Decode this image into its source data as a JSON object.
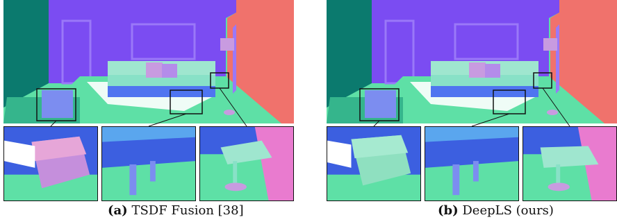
{
  "figure": {
    "panels": [
      {
        "id": "a",
        "caption_label": "(a)",
        "caption_text": "TSDF Fusion [38]"
      },
      {
        "id": "b",
        "caption_label": "(b)",
        "caption_text": "DeepLS (ours)"
      }
    ],
    "colors": {
      "wall_purple": "#7b4cf2",
      "wall_teal": "#0b7a6e",
      "wall_salmon": "#f0726c",
      "floor_green": "#5ee0a6",
      "sofa_top": "#88e1c7",
      "sofa_front": "#4f75f0",
      "cushion_pink": "#c89be0",
      "box_border": "#111111"
    }
  }
}
